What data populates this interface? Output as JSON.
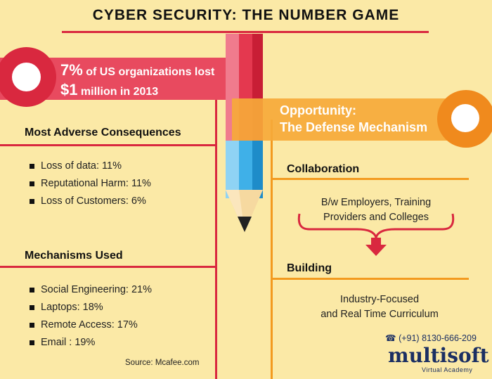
{
  "title": "CYBER SECURITY: THE NUMBER GAME",
  "left_banner": {
    "pct": "7%",
    "line1_rest": " of US organizations lost",
    "amount": "$1",
    "line2_rest": " million in 2013"
  },
  "right_banner": {
    "line1": "Opportunity:",
    "line2": "The Defense Mechanism"
  },
  "adverse": {
    "heading": "Most Adverse Consequences",
    "items": [
      "Loss of data: 11%",
      "Reputational Harm: 11%",
      "Loss of Customers: 6%"
    ]
  },
  "mechanisms": {
    "heading": "Mechanisms Used",
    "items": [
      "Social Engineering: 21%",
      "Laptops: 18%",
      "Remote Access: 17%",
      "Email : 19%"
    ]
  },
  "source": "Source: Mcafee.com",
  "collaboration": {
    "heading": "Collaboration",
    "line1": "B/w Employers, Training",
    "line2": "Providers and Colleges"
  },
  "building": {
    "heading": "Building",
    "line1": "Industry-Focused",
    "line2": "and Real Time Curriculum"
  },
  "contact": {
    "phone": "(+91) 8130-666-209",
    "brand": "multisoft",
    "brand_sub": "Virtual Academy"
  },
  "colors": {
    "background": "#fbe9a6",
    "red": "#d9283f",
    "orange": "#f39a1f",
    "navy": "#1b2f63"
  }
}
